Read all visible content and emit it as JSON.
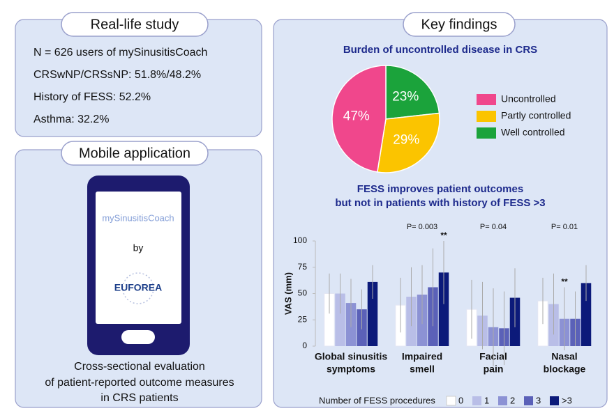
{
  "study": {
    "title": "Real-life study",
    "lines": [
      "N = 626 users of mySinusitisCoach",
      "CRSwNP/CRSsNP: 51.8%/48.2%",
      "History of FESS: 52.2%",
      "Asthma: 32.2%"
    ]
  },
  "app": {
    "title": "Mobile application",
    "app_name": "mySinusitisCoach",
    "by": "by",
    "logo": "EUFOREA",
    "description": [
      "Cross-sectional evaluation",
      "of patient-reported outcome measures",
      "in CRS patients"
    ]
  },
  "findings": {
    "title": "Key findings"
  },
  "chart_data": [
    {
      "type": "pie",
      "title": "Burden of uncontrolled disease in CRS",
      "categories": [
        "Uncontrolled",
        "Partly controlled",
        "Well controlled"
      ],
      "values": [
        47,
        29,
        23
      ],
      "value_labels": [
        "47%",
        "29%",
        "23%"
      ],
      "colors": [
        "#f0478c",
        "#fbc400",
        "#1ba33b"
      ]
    },
    {
      "type": "bar",
      "title": [
        "FESS improves patient outcomes",
        "but not in patients with history of FESS >3"
      ],
      "categories": [
        [
          "Global sinusitis",
          "symptoms"
        ],
        [
          "Impaired",
          "smell"
        ],
        [
          "Facial",
          "pain"
        ],
        [
          "Nasal",
          "blockage"
        ]
      ],
      "p_values": [
        null,
        "P= 0.003",
        "P= 0.04",
        "P= 0.01"
      ],
      "ylabel": "VAS (mm)",
      "ylim": [
        0,
        100
      ],
      "yticks": [
        0,
        25,
        50,
        75,
        100
      ],
      "legend_title": "Number of FESS procedures",
      "series": [
        {
          "name": "0",
          "color": "#ffffff",
          "values": [
            50,
            39,
            35,
            43
          ],
          "errors": [
            19,
            26,
            28,
            22
          ]
        },
        {
          "name": "1",
          "color": "#b9bee7",
          "values": [
            50,
            47,
            29,
            40
          ],
          "errors": [
            19,
            28,
            32,
            29
          ]
        },
        {
          "name": "2",
          "color": "#8c92d4",
          "values": [
            41,
            49,
            18,
            26
          ],
          "errors": [
            23,
            28,
            37,
            30
          ],
          "annotations": [
            null,
            null,
            null,
            "**"
          ]
        },
        {
          "name": "3",
          "color": "#5b61b8",
          "values": [
            35,
            56,
            17,
            26
          ],
          "errors": [
            19,
            37,
            35,
            26
          ]
        },
        {
          "name": ">3",
          "color": "#0c1a7a",
          "values": [
            61,
            70,
            46,
            60
          ],
          "errors": [
            16,
            30,
            28,
            17
          ],
          "annotations": [
            null,
            "**",
            null,
            null
          ]
        }
      ]
    }
  ]
}
